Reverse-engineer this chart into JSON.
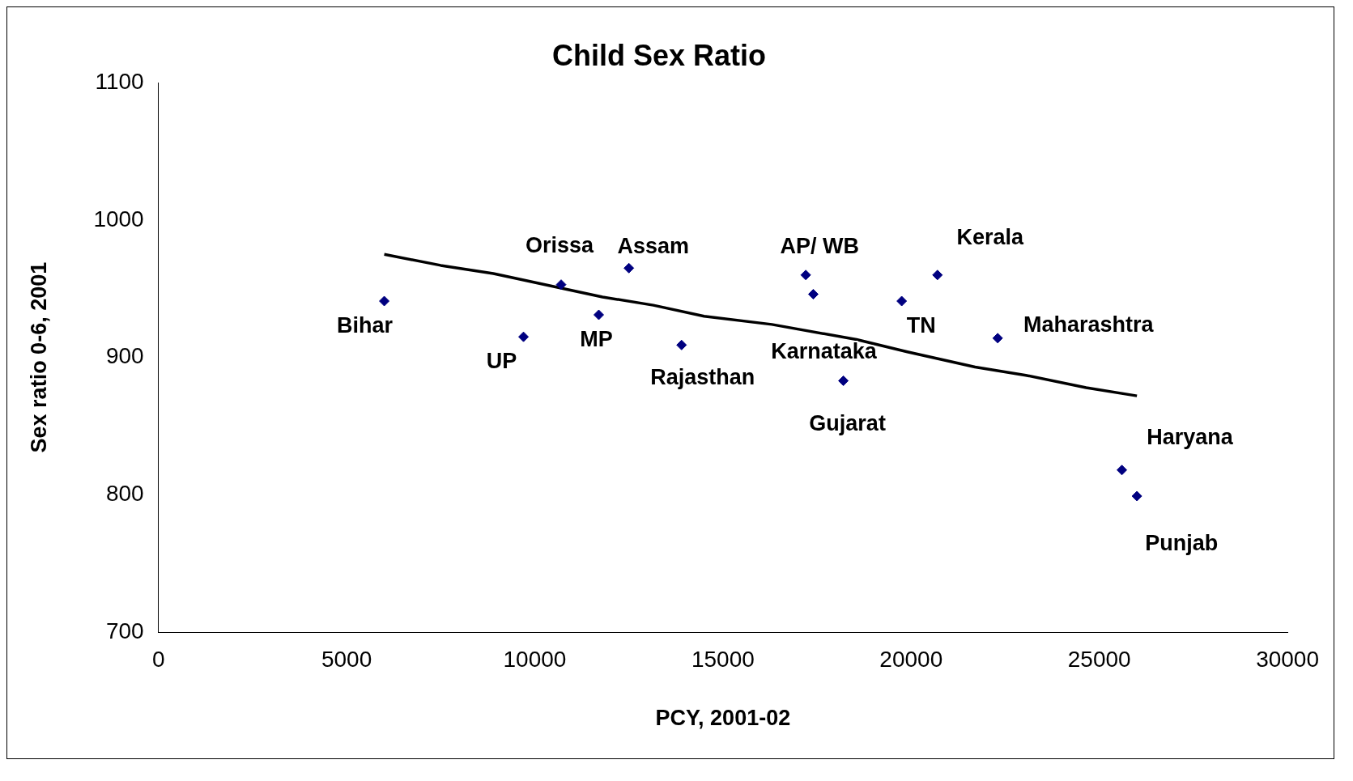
{
  "chart_data": {
    "type": "scatter",
    "title": "Child Sex Ratio",
    "xlabel": "PCY, 2001-02",
    "ylabel": "Sex ratio 0-6, 2001",
    "xlim": [
      0,
      30000
    ],
    "xticks": [
      0,
      5000,
      10000,
      15000,
      20000,
      25000,
      30000
    ],
    "ylim": [
      700,
      1100
    ],
    "yticks": [
      700,
      800,
      900,
      1000,
      1100
    ],
    "grid": false,
    "legend": false,
    "marker": "diamond",
    "series": [
      {
        "color": "#000080",
        "x": [
          6000,
          9700,
          10700,
          11700,
          12500,
          13900,
          17200,
          17400,
          18200,
          19750,
          20700,
          22300,
          25600,
          26000
        ],
        "values": [
          941,
          915,
          953,
          931,
          965,
          909,
          960,
          946,
          883,
          941,
          960,
          914,
          818,
          799
        ]
      },
      {
        "type": "line",
        "color": "#000000",
        "marker": "none",
        "x": [
          6000,
          7500,
          8900,
          11800,
          13150,
          14500,
          16300,
          18550,
          19900,
          21700,
          23050,
          24650,
          26000
        ],
        "values": [
          975,
          967,
          961,
          944,
          938,
          930,
          924,
          913,
          904,
          893,
          887,
          878,
          872
        ]
      }
    ],
    "annotations": [
      {
        "text": "Bihar",
        "x": 6000,
        "y": 941
      },
      {
        "text": "UP",
        "x": 9700,
        "y": 915
      },
      {
        "text": "Orissa",
        "x": 10700,
        "y": 953
      },
      {
        "text": "MP",
        "x": 11700,
        "y": 931
      },
      {
        "text": "Assam",
        "x": 12500,
        "y": 965
      },
      {
        "text": "Rajasthan",
        "x": 13900,
        "y": 909
      },
      {
        "text": "AP/ WB",
        "x": 17200,
        "y": 960
      },
      {
        "text": "Karnataka",
        "x": 17400,
        "y": 946
      },
      {
        "text": "Gujarat",
        "x": 18200,
        "y": 883
      },
      {
        "text": "TN",
        "x": 19750,
        "y": 941
      },
      {
        "text": "Kerala",
        "x": 20700,
        "y": 960
      },
      {
        "text": "Maharashtra",
        "x": 22300,
        "y": 914
      },
      {
        "text": "Haryana",
        "x": 25600,
        "y": 818
      },
      {
        "text": "Punjab",
        "x": 26000,
        "y": 799
      }
    ]
  }
}
